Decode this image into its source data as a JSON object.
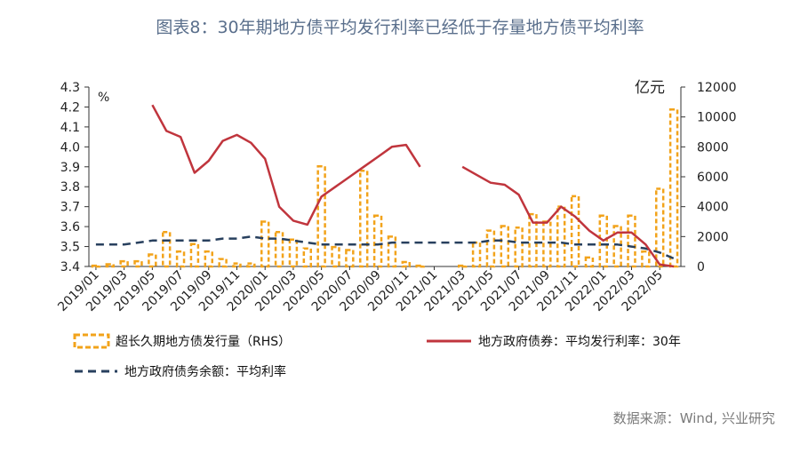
{
  "title": "图表8：30年期地方债平均发行利率已经低于存量地方债平均利率",
  "source": "数据来源：Wind, 兴业研究",
  "colors": {
    "bar": "#f2a31b",
    "line": "#c0353d",
    "dashed": "#28405e"
  },
  "chart_data": {
    "type": "bar+line",
    "left_axis": {
      "unit_label": "%",
      "ylim": [
        3.4,
        4.3
      ],
      "ticks": [
        "3.4",
        "3.5",
        "3.6",
        "3.7",
        "3.8",
        "3.9",
        "4.0",
        "4.1",
        "4.2",
        "4.3"
      ]
    },
    "right_axis": {
      "unit_label": "亿元",
      "ylim": [
        0,
        12000
      ],
      "ticks": [
        "0",
        "2000",
        "4000",
        "6000",
        "8000",
        "10000",
        "12000"
      ]
    },
    "x_tick_labels": [
      "2019/01",
      "2019/03",
      "2019/05",
      "2019/07",
      "2019/09",
      "2019/11",
      "2020/01",
      "2020/03",
      "2020/05",
      "2020/07",
      "2020/09",
      "2020/11",
      "2021/01",
      "2021/03",
      "2021/05",
      "2021/07",
      "2021/09",
      "2021/11",
      "2022/01",
      "2022/03",
      "2022/05"
    ],
    "categories": [
      "2019/01",
      "2019/02",
      "2019/03",
      "2019/04",
      "2019/05",
      "2019/06",
      "2019/07",
      "2019/08",
      "2019/09",
      "2019/10",
      "2019/11",
      "2019/12",
      "2020/01",
      "2020/02",
      "2020/03",
      "2020/04",
      "2020/05",
      "2020/06",
      "2020/07",
      "2020/08",
      "2020/09",
      "2020/10",
      "2020/11",
      "2020/12",
      "2021/01",
      "2021/02",
      "2021/03",
      "2021/04",
      "2021/05",
      "2021/06",
      "2021/07",
      "2021/08",
      "2021/09",
      "2021/10",
      "2021/11",
      "2021/12",
      "2022/01",
      "2022/02",
      "2022/03",
      "2022/04",
      "2022/05",
      "2022/06"
    ],
    "series": [
      {
        "name": "超长久期地方债发行量（RHS）",
        "type": "bar",
        "axis": "right",
        "values": [
          50,
          150,
          350,
          350,
          800,
          2300,
          1000,
          1500,
          1000,
          500,
          200,
          200,
          3000,
          2300,
          1800,
          1200,
          6700,
          1300,
          1100,
          6400,
          3400,
          2000,
          300,
          50,
          0,
          0,
          50,
          1600,
          2400,
          2700,
          2600,
          3500,
          3000,
          4000,
          4700,
          600,
          3400,
          2700,
          3400,
          1000,
          5200,
          10500
        ]
      },
      {
        "name": "地方政府债券：平均发行利率：30年",
        "type": "line",
        "axis": "left",
        "values": [
          null,
          null,
          null,
          null,
          4.21,
          4.08,
          4.05,
          3.87,
          3.93,
          4.03,
          4.06,
          4.02,
          3.94,
          3.7,
          3.63,
          3.61,
          3.75,
          3.8,
          3.85,
          3.9,
          3.95,
          4.0,
          4.01,
          3.9,
          null,
          null,
          3.9,
          3.86,
          3.82,
          3.81,
          3.76,
          3.62,
          3.62,
          3.7,
          3.65,
          3.58,
          3.53,
          3.57,
          3.57,
          3.51,
          3.41,
          3.4
        ]
      },
      {
        "name": "地方政府债务余额：平均利率",
        "type": "line",
        "axis": "left",
        "values": [
          3.51,
          3.51,
          3.51,
          3.52,
          3.53,
          3.53,
          3.53,
          3.53,
          3.53,
          3.54,
          3.54,
          3.55,
          3.54,
          3.54,
          3.53,
          3.52,
          3.51,
          3.51,
          3.51,
          3.51,
          3.51,
          3.52,
          3.52,
          3.52,
          3.52,
          3.52,
          3.52,
          3.52,
          3.53,
          3.53,
          3.52,
          3.52,
          3.52,
          3.52,
          3.51,
          3.51,
          3.51,
          3.51,
          3.5,
          3.49,
          3.47,
          3.44
        ]
      }
    ],
    "legend_position": "bottom"
  }
}
